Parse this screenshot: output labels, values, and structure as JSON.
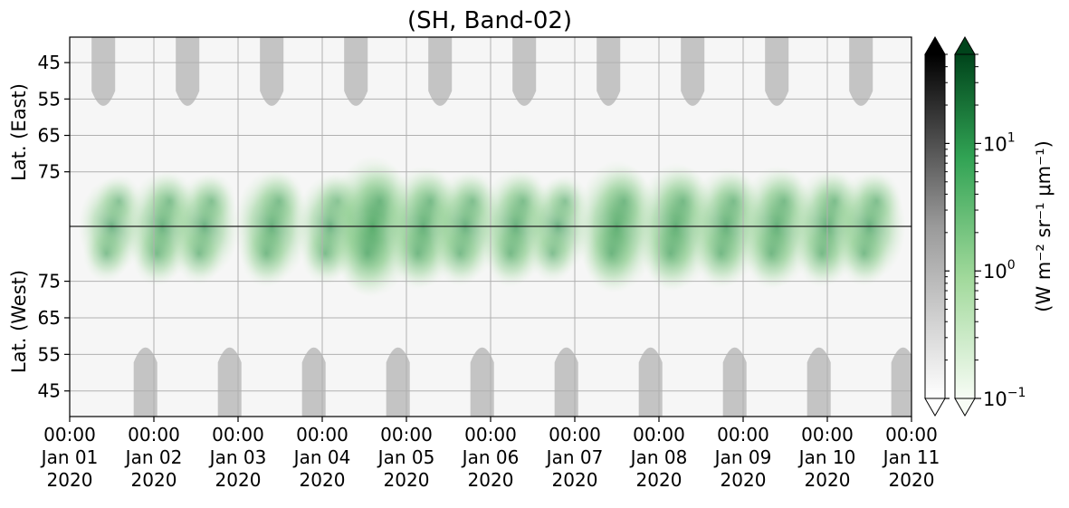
{
  "chart_data": {
    "type": "heatmap",
    "title": "(SH, Band-02)",
    "xlabel": "",
    "x_ticks": [
      {
        "time": "00:00",
        "date": "Jan 01",
        "year": "2020"
      },
      {
        "time": "00:00",
        "date": "Jan 02",
        "year": "2020"
      },
      {
        "time": "00:00",
        "date": "Jan 03",
        "year": "2020"
      },
      {
        "time": "00:00",
        "date": "Jan 04",
        "year": "2020"
      },
      {
        "time": "00:00",
        "date": "Jan 05",
        "year": "2020"
      },
      {
        "time": "00:00",
        "date": "Jan 06",
        "year": "2020"
      },
      {
        "time": "00:00",
        "date": "Jan 07",
        "year": "2020"
      },
      {
        "time": "00:00",
        "date": "Jan 08",
        "year": "2020"
      },
      {
        "time": "00:00",
        "date": "Jan 09",
        "year": "2020"
      },
      {
        "time": "00:00",
        "date": "Jan 10",
        "year": "2020"
      },
      {
        "time": "00:00",
        "date": "Jan 11",
        "year": "2020"
      }
    ],
    "xlim": [
      "2020-01-01 00:00",
      "2020-01-11 00:00"
    ],
    "ylabel_east": "Lat. (East)",
    "ylabel_west": "Lat. (West)",
    "y_ticks_east": [
      "45",
      "55",
      "65",
      "75"
    ],
    "y_ticks_west": [
      "75",
      "65",
      "55",
      "45"
    ],
    "y_ranges": {
      "east": [
        38,
        90
      ],
      "west": [
        90,
        38
      ]
    },
    "grid": true,
    "colorbar": {
      "label": "(W m⁻² sr⁻¹ μm⁻¹)",
      "scale": "log",
      "range": [
        0.1,
        50
      ],
      "ticks": [
        {
          "value": 0.1,
          "base": "10",
          "exp": "−1"
        },
        {
          "value": 1,
          "base": "10",
          "exp": "0"
        },
        {
          "value": 10,
          "base": "10",
          "exp": "1"
        }
      ],
      "cmaps": [
        "gray_r",
        "Greens"
      ],
      "extend": "both"
    },
    "colors": {
      "daylight_mask": "#c4c4c4",
      "green_strong": "#0a6b2c",
      "green_light": "#cdebc6",
      "background": "#f7f7f7"
    },
    "green_band_centers": [
      {
        "t": 0.5,
        "v": 3
      },
      {
        "t": 1.1,
        "v": 5
      },
      {
        "t": 1.6,
        "v": 4
      },
      {
        "t": 2.4,
        "v": 6
      },
      {
        "t": 3.1,
        "v": 4
      },
      {
        "t": 3.6,
        "v": 18
      },
      {
        "t": 4.2,
        "v": 8
      },
      {
        "t": 4.7,
        "v": 5
      },
      {
        "t": 5.3,
        "v": 6
      },
      {
        "t": 5.8,
        "v": 3
      },
      {
        "t": 6.5,
        "v": 12
      },
      {
        "t": 7.2,
        "v": 10
      },
      {
        "t": 7.8,
        "v": 7
      },
      {
        "t": 8.4,
        "v": 8
      },
      {
        "t": 9.0,
        "v": 6
      },
      {
        "t": 9.5,
        "v": 5
      }
    ]
  }
}
